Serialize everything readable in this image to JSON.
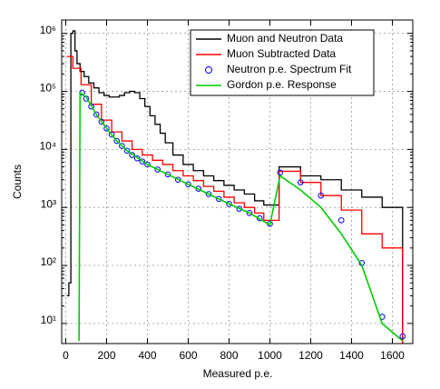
{
  "chart_data": {
    "type": "line",
    "xlabel": "Measured p.e.",
    "ylabel": "Counts",
    "xlim": [
      -20,
      1700
    ],
    "xticks": [
      0,
      200,
      400,
      600,
      800,
      1000,
      1200,
      1400,
      1600
    ],
    "ylim": [
      4.5,
      1700000
    ],
    "yscale": "log",
    "yticks": [
      {
        "value": 10,
        "label": "10¹"
      },
      {
        "value": 100,
        "label": "10²"
      },
      {
        "value": 1000,
        "label": "10³"
      },
      {
        "value": 10000,
        "label": "10⁴"
      },
      {
        "value": 100000,
        "label": "10⁵"
      },
      {
        "value": 1000000,
        "label": "10⁶"
      }
    ],
    "grid": true,
    "legend": "upper right",
    "series": [
      {
        "name": "Muon and Neutron Data",
        "color": "#000000",
        "style": "steps",
        "x": [
          10,
          20,
          30,
          40,
          50,
          60,
          80,
          100,
          125,
          150,
          175,
          200,
          225,
          250,
          275,
          300,
          325,
          350,
          375,
          400,
          425,
          450,
          475,
          500,
          550,
          600,
          650,
          700,
          750,
          800,
          850,
          900,
          950,
          990,
          1100,
          1200,
          1300,
          1400,
          1500,
          1600
        ],
        "values": [
          30,
          50,
          1000000,
          1100000,
          500000,
          300000,
          220000,
          180000,
          140000,
          115000,
          95000,
          85000,
          80000,
          80000,
          85000,
          95000,
          100000,
          95000,
          75000,
          55000,
          38000,
          27000,
          19000,
          13000,
          8000,
          5500,
          4300,
          3500,
          2900,
          2400,
          2000,
          1700,
          1300,
          1100,
          5000,
          3500,
          3000,
          2000,
          1500,
          1000
        ]
      },
      {
        "name": "Muon Subtracted Data",
        "color": "#ff0000",
        "style": "steps",
        "x": [
          20,
          50,
          100,
          150,
          200,
          250,
          300,
          350,
          400,
          450,
          500,
          550,
          600,
          650,
          700,
          750,
          800,
          850,
          900,
          950,
          990,
          1100,
          1200,
          1300,
          1400,
          1500,
          1600
        ],
        "values": [
          400000,
          250000,
          130000,
          60000,
          32000,
          20000,
          14000,
          10000,
          8000,
          6500,
          5500,
          4300,
          3500,
          2900,
          2300,
          1900,
          1500,
          1200,
          1000,
          800,
          600,
          4200,
          2700,
          1600,
          900,
          350,
          200
        ]
      },
      {
        "name": "Neutron p.e. Spectrum Fit",
        "color": "#0000ff",
        "style": "markers",
        "x": [
          80,
          100,
          125,
          150,
          175,
          200,
          225,
          250,
          275,
          300,
          325,
          350,
          375,
          400,
          450,
          500,
          550,
          600,
          650,
          700,
          750,
          800,
          850,
          900,
          950,
          1000,
          1050,
          1150,
          1250,
          1350,
          1450,
          1550,
          1650
        ],
        "values": [
          95000,
          75000,
          55000,
          40000,
          30000,
          23000,
          18000,
          14000,
          11500,
          9500,
          8000,
          7000,
          6200,
          5500,
          4500,
          3700,
          3000,
          2500,
          2100,
          1700,
          1400,
          1150,
          950,
          800,
          650,
          520,
          4000,
          2700,
          1600,
          600,
          110,
          13,
          6
        ]
      },
      {
        "name": "Gordon p.e. Response",
        "color": "#00cc00",
        "style": "line",
        "x": [
          65,
          70,
          100,
          150,
          200,
          250,
          300,
          400,
          500,
          600,
          700,
          800,
          900,
          1000,
          1050,
          1150,
          1250,
          1350,
          1450,
          1550,
          1650
        ],
        "values": [
          5,
          95000,
          80000,
          40000,
          23000,
          14000,
          9500,
          5500,
          3700,
          2500,
          1700,
          1150,
          800,
          500,
          3500,
          2000,
          1000,
          350,
          100,
          10,
          5
        ]
      }
    ]
  }
}
